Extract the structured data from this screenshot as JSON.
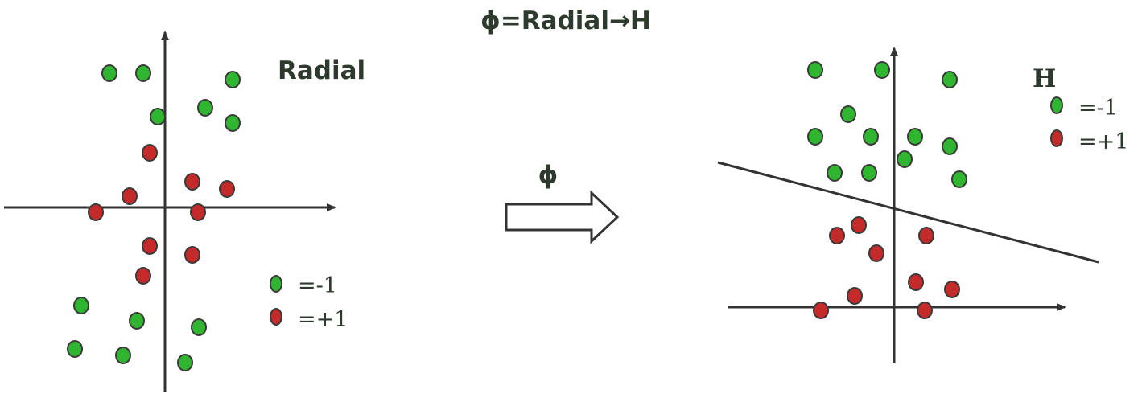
{
  "title": "ϕ=Radial→H",
  "mapping_label": "ϕ",
  "colors": {
    "green": "#2fb52f",
    "red": "#c42a2a",
    "stroke": "#3a3a3a",
    "axis": "#333333",
    "arrow_fill": "#ffffff"
  },
  "left_panel": {
    "label": "Radial",
    "legend": [
      {
        "color": "green",
        "text": "=-1"
      },
      {
        "color": "red",
        "text": "=+1"
      }
    ]
  },
  "right_panel": {
    "label": "H",
    "legend": [
      {
        "color": "green",
        "text": "=-1"
      },
      {
        "color": "red",
        "text": "=+1"
      }
    ]
  }
}
